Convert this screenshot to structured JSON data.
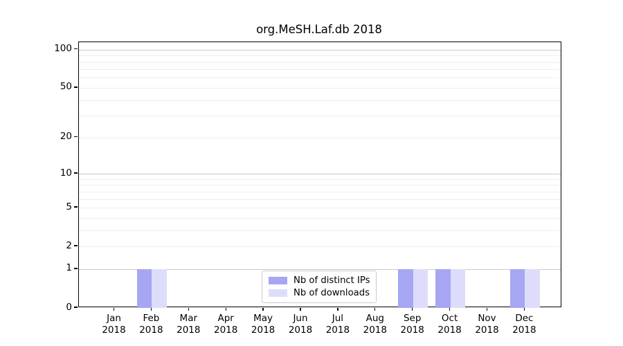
{
  "figure": {
    "title": "org.MeSH.Laf.db 2018",
    "background_color": "#ffffff",
    "axis_color": "#000000",
    "grid_major_color": "#c9c9c9",
    "grid_minor_color": "#ededed",
    "legend_border_color": "#cccccc"
  },
  "chart_data": {
    "type": "bar",
    "title": "org.MeSH.Laf.db 2018",
    "x_tick_months": [
      "Jan",
      "Feb",
      "Mar",
      "Apr",
      "May",
      "Jun",
      "Jul",
      "Aug",
      "Sep",
      "Oct",
      "Nov",
      "Dec"
    ],
    "x_tick_year": "2018",
    "series": [
      {
        "name": "Nb of distinct IPs",
        "color": "#a6a6f2",
        "values": [
          0,
          1,
          0,
          0,
          0,
          0,
          0,
          0,
          1,
          1,
          0,
          1
        ]
      },
      {
        "name": "Nb of downloads",
        "color": "#ddddfb",
        "values": [
          0,
          1,
          0,
          0,
          0,
          0,
          0,
          0,
          1,
          1,
          0,
          1
        ]
      }
    ],
    "y_scale": "log1p",
    "y_ticks": [
      0,
      1,
      2,
      5,
      10,
      20,
      50,
      100
    ],
    "grid_major": [
      1,
      10,
      100
    ],
    "grid_minor": [
      2,
      3,
      4,
      5,
      6,
      7,
      8,
      9,
      20,
      30,
      40,
      50,
      60,
      70,
      80,
      90
    ],
    "ylim": [
      0,
      115
    ],
    "grid": true,
    "legend_position": "inside-bottom-center"
  }
}
